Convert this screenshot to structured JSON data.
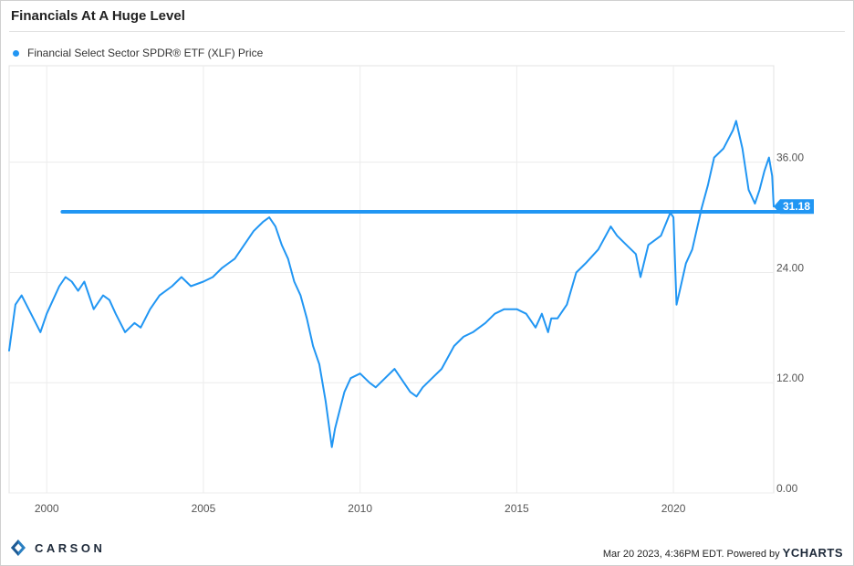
{
  "chart_data": {
    "type": "line",
    "title": "Financials At A Huge Level",
    "legend": [
      {
        "label": "Financial Select Sector SPDR® ETF (XLF) Price",
        "color": "#2196F3"
      }
    ],
    "x_ticks": [
      "2000",
      "2005",
      "2010",
      "2015",
      "2020"
    ],
    "x_tick_values": [
      2000,
      2005,
      2010,
      2015,
      2020
    ],
    "xlim": [
      1998.8,
      2023.2
    ],
    "y_ticks": [
      "36.00",
      "24.00",
      "12.00",
      "0.00"
    ],
    "y_tick_values": [
      36,
      24,
      12,
      0
    ],
    "ylim": [
      0,
      46.5
    ],
    "grid": true,
    "horizontal_line": {
      "value": 30.6,
      "x_start": 2000.5,
      "x_end": 2023.5,
      "color": "#2196F3"
    },
    "last_value": {
      "label": "31.18",
      "value": 31.18
    },
    "series": [
      {
        "name": "Financial Select Sector SPDR® ETF (XLF) Price",
        "color": "#2196F3",
        "x": [
          1998.8,
          1999.0,
          1999.2,
          1999.5,
          1999.8,
          2000.0,
          2000.2,
          2000.4,
          2000.6,
          2000.8,
          2001.0,
          2001.2,
          2001.5,
          2001.8,
          2002.0,
          2002.2,
          2002.5,
          2002.8,
          2003.0,
          2003.3,
          2003.6,
          2004.0,
          2004.3,
          2004.6,
          2005.0,
          2005.3,
          2005.6,
          2006.0,
          2006.3,
          2006.6,
          2006.9,
          2007.1,
          2007.3,
          2007.5,
          2007.7,
          2007.9,
          2008.1,
          2008.3,
          2008.5,
          2008.7,
          2008.9,
          2009.0,
          2009.1,
          2009.2,
          2009.35,
          2009.5,
          2009.7,
          2010.0,
          2010.3,
          2010.5,
          2010.8,
          2011.1,
          2011.3,
          2011.6,
          2011.8,
          2012.0,
          2012.3,
          2012.6,
          2013.0,
          2013.3,
          2013.6,
          2014.0,
          2014.3,
          2014.6,
          2015.0,
          2015.3,
          2015.6,
          2015.8,
          2016.0,
          2016.1,
          2016.3,
          2016.6,
          2016.9,
          2017.2,
          2017.6,
          2018.0,
          2018.2,
          2018.5,
          2018.8,
          2018.95,
          2019.2,
          2019.6,
          2019.9,
          2020.0,
          2020.1,
          2020.2,
          2020.4,
          2020.6,
          2020.9,
          2021.1,
          2021.3,
          2021.6,
          2021.9,
          2022.0,
          2022.2,
          2022.4,
          2022.6,
          2022.75,
          2022.9,
          2023.05,
          2023.15,
          2023.2
        ],
        "values": [
          15.5,
          20.5,
          21.5,
          19.5,
          17.5,
          19.5,
          21.0,
          22.5,
          23.5,
          23.0,
          22.0,
          23.0,
          20.0,
          21.5,
          21.0,
          19.5,
          17.5,
          18.5,
          18.0,
          20.0,
          21.5,
          22.5,
          23.5,
          22.5,
          23.0,
          23.5,
          24.5,
          25.5,
          27.0,
          28.5,
          29.5,
          30.0,
          29.0,
          27.0,
          25.5,
          23.0,
          21.5,
          19.0,
          16.0,
          14.0,
          10.0,
          7.5,
          5.0,
          7.0,
          9.0,
          11.0,
          12.5,
          13.0,
          12.0,
          11.5,
          12.5,
          13.5,
          12.5,
          11.0,
          10.5,
          11.5,
          12.5,
          13.5,
          16.0,
          17.0,
          17.5,
          18.5,
          19.5,
          20.0,
          20.0,
          19.5,
          18.0,
          19.5,
          17.5,
          19.0,
          19.0,
          20.5,
          24.0,
          25.0,
          26.5,
          29.0,
          28.0,
          27.0,
          26.0,
          23.5,
          27.0,
          28.0,
          30.5,
          30.0,
          20.5,
          22.0,
          25.0,
          26.5,
          31.0,
          33.5,
          36.5,
          37.5,
          39.5,
          40.5,
          37.5,
          33.0,
          31.5,
          33.0,
          35.0,
          36.5,
          34.5,
          31.18
        ]
      }
    ]
  },
  "footer": {
    "brand": "CARSON",
    "timestamp": "Mar 20 2023, 4:36PM EDT. Powered by",
    "powered_brand": "YCHARTS"
  }
}
